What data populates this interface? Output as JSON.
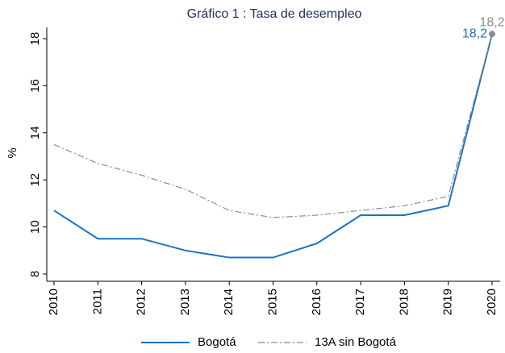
{
  "chart_data": {
    "type": "line",
    "title": "Gráfico 1 : Tasa de desempleo",
    "y_label": "%",
    "x": [
      2010,
      2011,
      2012,
      2013,
      2014,
      2015,
      2016,
      2017,
      2018,
      2019,
      2020
    ],
    "xlim": [
      2010,
      2020
    ],
    "xticks": [
      2010,
      2011,
      2012,
      2013,
      2014,
      2015,
      2016,
      2017,
      2018,
      2019,
      2020
    ],
    "ylim": [
      8,
      18
    ],
    "yticks": [
      8,
      10,
      12,
      14,
      16,
      18
    ],
    "legend": "bottom",
    "series": [
      {
        "name": "Bogotá",
        "color": "#1a72c4",
        "style": "solid",
        "values": [
          10.7,
          9.5,
          9.5,
          9.0,
          8.7,
          8.7,
          9.3,
          10.5,
          10.5,
          10.9,
          18.2
        ],
        "value_labels": [
          null,
          null,
          null,
          null,
          null,
          null,
          null,
          null,
          null,
          null,
          "18,2"
        ]
      },
      {
        "name": "13A sin Bogotá",
        "color": "#8c8c8c",
        "style": "dashdot",
        "values": [
          13.5,
          12.7,
          12.2,
          11.6,
          10.7,
          10.4,
          10.5,
          10.7,
          10.9,
          11.3,
          18.2
        ],
        "value_labels": [
          null,
          null,
          null,
          null,
          null,
          null,
          null,
          null,
          null,
          null,
          "18,2"
        ]
      }
    ]
  }
}
